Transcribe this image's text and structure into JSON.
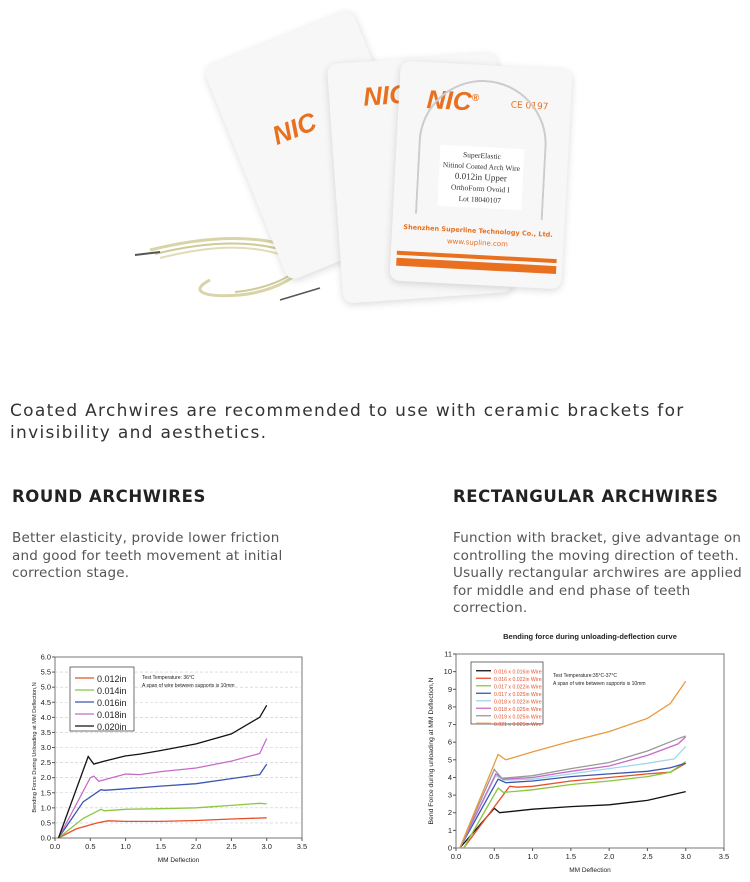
{
  "product_image": {
    "brand": "NIC",
    "registered": "®",
    "ce_mark": "CE 0197",
    "label_lines": [
      "SuperElastic",
      "Nitinol Coated Arch Wire",
      "0.012in   Upper",
      "OrthoForm Ovoid I",
      "Lot  18040107"
    ],
    "company": "Shenzhen Superline Technology Co., Ltd.",
    "website": "www.supline.com"
  },
  "intro": {
    "highlight": "Coated Archwires",
    "text": " are recommended to use with ceramic brackets for invisibility and aesthetics."
  },
  "round": {
    "title": "ROUND ARCHWIRES",
    "description": "Better elasticity, provide lower friction and good for teeth movement at initial correction stage."
  },
  "rectangular": {
    "title": "RECTANGULAR ARCHWIRES",
    "description": "Function with bracket, give advantage on controlling the moving direction of teeth. Usually rectangular archwires are applied for middle and end phase of teeth correction."
  },
  "chart_data": [
    {
      "type": "line",
      "title": "",
      "xlabel": "MM Deflection",
      "ylabel": "Bending Force During Unloading at MM Deflection,N",
      "xlim": [
        0,
        3.5
      ],
      "ylim": [
        0,
        6.0
      ],
      "xticks": [
        "0.0",
        "0.5",
        "1.0",
        "1.5",
        "2.0",
        "2.5",
        "3.0",
        "3.5"
      ],
      "yticks": [
        "0.0",
        "0.5",
        "1.0",
        "1.5",
        "2.0",
        "2.5",
        "3.0",
        "3.5",
        "4.0",
        "4.5",
        "5.0",
        "5.5",
        "6.0"
      ],
      "grid": "horizontal dashed",
      "legend": "top-left",
      "annotation": [
        "Test Temperature: 36°C",
        "A span of wire between supports is 10mm"
      ],
      "series": [
        {
          "name": "0.012in",
          "color": "#e8502a",
          "points": [
            [
              0.05,
              0
            ],
            [
              0.3,
              0.3
            ],
            [
              0.6,
              0.5
            ],
            [
              0.75,
              0.57
            ],
            [
              1.0,
              0.55
            ],
            [
              1.5,
              0.55
            ],
            [
              2.0,
              0.58
            ],
            [
              2.5,
              0.63
            ],
            [
              3.0,
              0.67
            ]
          ]
        },
        {
          "name": "0.014in",
          "color": "#8cc63f",
          "points": [
            [
              0.05,
              0
            ],
            [
              0.4,
              0.65
            ],
            [
              0.65,
              0.95
            ],
            [
              0.7,
              0.9
            ],
            [
              1.0,
              0.95
            ],
            [
              1.5,
              0.97
            ],
            [
              2.0,
              1.0
            ],
            [
              2.5,
              1.08
            ],
            [
              2.9,
              1.15
            ],
            [
              3.0,
              1.13
            ]
          ]
        },
        {
          "name": "0.016in",
          "color": "#3b56b0",
          "points": [
            [
              0.05,
              0
            ],
            [
              0.4,
              1.2
            ],
            [
              0.65,
              1.6
            ],
            [
              0.7,
              1.58
            ],
            [
              1.0,
              1.63
            ],
            [
              1.5,
              1.72
            ],
            [
              2.0,
              1.8
            ],
            [
              2.5,
              1.97
            ],
            [
              2.9,
              2.1
            ],
            [
              3.0,
              2.45
            ]
          ]
        },
        {
          "name": "0.018in",
          "color": "#c86bc8",
          "points": [
            [
              0.05,
              0
            ],
            [
              0.5,
              2.0
            ],
            [
              0.55,
              2.05
            ],
            [
              0.62,
              1.88
            ],
            [
              1.0,
              2.12
            ],
            [
              1.2,
              2.1
            ],
            [
              1.5,
              2.2
            ],
            [
              2.0,
              2.32
            ],
            [
              2.5,
              2.55
            ],
            [
              2.9,
              2.8
            ],
            [
              3.0,
              3.3
            ]
          ]
        },
        {
          "name": "0.020in",
          "color": "#111111",
          "points": [
            [
              0.05,
              0
            ],
            [
              0.47,
              2.7
            ],
            [
              0.55,
              2.45
            ],
            [
              0.7,
              2.55
            ],
            [
              1.0,
              2.72
            ],
            [
              1.2,
              2.78
            ],
            [
              1.5,
              2.9
            ],
            [
              2.0,
              3.12
            ],
            [
              2.5,
              3.45
            ],
            [
              2.9,
              4.0
            ],
            [
              3.0,
              4.4
            ]
          ]
        }
      ]
    },
    {
      "type": "line",
      "title": "Bending force during unloading-deflection curve",
      "xlabel": "MM Deflection",
      "ylabel": "Bend Force during unloading at MM Deflection,N",
      "xlim": [
        0,
        3.5
      ],
      "ylim": [
        0,
        11
      ],
      "xticks": [
        "0.0",
        "0.5",
        "1.0",
        "1.5",
        "2.0",
        "2.5",
        "3.0",
        "3.5"
      ],
      "yticks": [
        "0",
        "1",
        "2",
        "3",
        "4",
        "5",
        "6",
        "7",
        "8",
        "9",
        "10",
        "11"
      ],
      "grid": "none",
      "legend": "top-left",
      "annotation": [
        "Test Temperature:35°C-37°C",
        "A span of wire between supports is 10mm"
      ],
      "series": [
        {
          "name": "0.016 x 0.016in Wire",
          "color": "#111111",
          "points": [
            [
              0.05,
              0
            ],
            [
              0.5,
              2.25
            ],
            [
              0.57,
              2.0
            ],
            [
              1.0,
              2.2
            ],
            [
              1.5,
              2.35
            ],
            [
              2.0,
              2.45
            ],
            [
              2.5,
              2.7
            ],
            [
              3.0,
              3.2
            ]
          ]
        },
        {
          "name": "0.016 x 0.022in Wire",
          "color": "#e8502a",
          "points": [
            [
              0.1,
              0
            ],
            [
              0.7,
              3.5
            ],
            [
              0.8,
              3.45
            ],
            [
              1.0,
              3.5
            ],
            [
              1.5,
              3.8
            ],
            [
              2.0,
              4.0
            ],
            [
              2.5,
              4.2
            ],
            [
              2.8,
              4.3
            ],
            [
              3.0,
              4.8
            ]
          ]
        },
        {
          "name": "0.017 x 0.022in Wire",
          "color": "#8cc63f",
          "points": [
            [
              0.1,
              0
            ],
            [
              0.55,
              3.4
            ],
            [
              0.62,
              3.15
            ],
            [
              1.0,
              3.3
            ],
            [
              1.5,
              3.6
            ],
            [
              2.0,
              3.8
            ],
            [
              2.5,
              4.05
            ],
            [
              2.8,
              4.3
            ],
            [
              3.0,
              4.9
            ]
          ]
        },
        {
          "name": "0.017 x 0.025in Wire",
          "color": "#3b56b0",
          "points": [
            [
              0.05,
              0
            ],
            [
              0.55,
              3.9
            ],
            [
              0.65,
              3.7
            ],
            [
              1.0,
              3.8
            ],
            [
              1.5,
              4.05
            ],
            [
              2.0,
              4.2
            ],
            [
              2.5,
              4.35
            ],
            [
              2.8,
              4.55
            ],
            [
              3.0,
              4.8
            ]
          ]
        },
        {
          "name": "0.018 x 0.022in Wire",
          "color": "#9fd6e8",
          "points": [
            [
              0.05,
              0
            ],
            [
              0.52,
              4.1
            ],
            [
              0.62,
              3.85
            ],
            [
              1.0,
              3.9
            ],
            [
              1.5,
              4.2
            ],
            [
              2.0,
              4.5
            ],
            [
              2.5,
              4.8
            ],
            [
              2.85,
              5.05
            ],
            [
              3.0,
              5.75
            ]
          ]
        },
        {
          "name": "0.018 x 0.025in Wire",
          "color": "#c86bc8",
          "points": [
            [
              0.05,
              0
            ],
            [
              0.52,
              4.2
            ],
            [
              0.62,
              3.9
            ],
            [
              1.0,
              4.0
            ],
            [
              1.5,
              4.35
            ],
            [
              2.0,
              4.65
            ],
            [
              2.5,
              5.25
            ],
            [
              2.9,
              5.9
            ],
            [
              3.0,
              6.3
            ]
          ]
        },
        {
          "name": "0.019 x 0.025in Wire",
          "color": "#999999",
          "points": [
            [
              0.05,
              0
            ],
            [
              0.5,
              4.45
            ],
            [
              0.6,
              3.95
            ],
            [
              1.0,
              4.1
            ],
            [
              1.5,
              4.5
            ],
            [
              2.0,
              4.85
            ],
            [
              2.5,
              5.5
            ],
            [
              2.9,
              6.2
            ],
            [
              3.0,
              6.35
            ]
          ]
        },
        {
          "name": "0.021 x 0.025in Wire",
          "color": "#e89a40",
          "points": [
            [
              0.05,
              0
            ],
            [
              0.55,
              5.3
            ],
            [
              0.65,
              5.0
            ],
            [
              1.0,
              5.45
            ],
            [
              1.5,
              6.05
            ],
            [
              2.0,
              6.6
            ],
            [
              2.5,
              7.35
            ],
            [
              2.8,
              8.2
            ],
            [
              3.0,
              9.45
            ]
          ]
        }
      ]
    }
  ]
}
